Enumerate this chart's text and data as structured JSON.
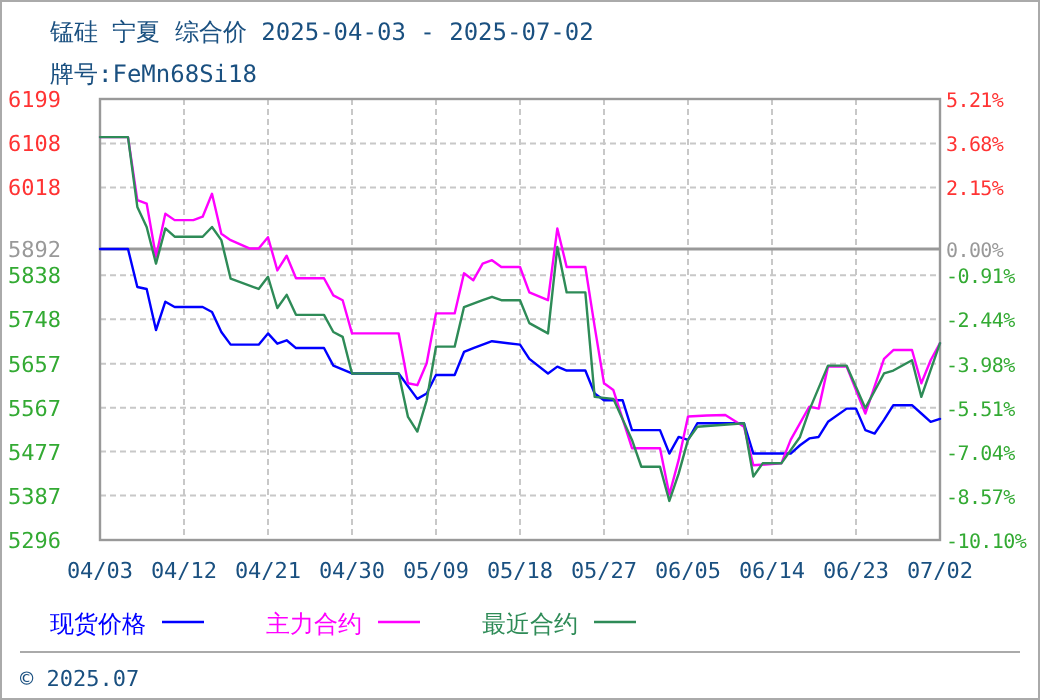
{
  "chart_data": {
    "type": "line",
    "title": "锰硅 宁夏 综合价 2025-04-03 - 2025-07-02",
    "subtitle": "牌号:FeMn68Si18",
    "annotations": [
      "© 2025.07"
    ],
    "xlim": [
      "2025-04-03",
      "2025-07-02"
    ],
    "xticks": [
      {
        "value": "2025-04-03",
        "label": "04/03"
      },
      {
        "value": "2025-04-12",
        "label": "04/12"
      },
      {
        "value": "2025-04-21",
        "label": "04/21"
      },
      {
        "value": "2025-04-30",
        "label": "04/30"
      },
      {
        "value": "2025-05-09",
        "label": "05/09"
      },
      {
        "value": "2025-05-18",
        "label": "05/18"
      },
      {
        "value": "2025-05-27",
        "label": "05/27"
      },
      {
        "value": "2025-06-05",
        "label": "06/05"
      },
      {
        "value": "2025-06-14",
        "label": "06/14"
      },
      {
        "value": "2025-06-23",
        "label": "06/23"
      },
      {
        "value": "2025-07-02",
        "label": "07/02"
      }
    ],
    "ylim": [
      5296,
      6199
    ],
    "yticks": [
      5296,
      5387,
      5477,
      5567,
      5657,
      5748,
      5838,
      5892,
      6018,
      6108,
      6199
    ],
    "y2lim": [
      -10.1,
      5.21
    ],
    "y2ticks": [
      {
        "value": -10.1,
        "label": "-10.10%"
      },
      {
        "value": -8.57,
        "label": "-8.57%"
      },
      {
        "value": -7.04,
        "label": "-7.04%"
      },
      {
        "value": -5.51,
        "label": "-5.51%"
      },
      {
        "value": -3.98,
        "label": "-3.98%"
      },
      {
        "value": -2.44,
        "label": "-2.44%"
      },
      {
        "value": -0.91,
        "label": "-0.91%"
      },
      {
        "value": 0,
        "label": "0.00%"
      },
      {
        "value": 2.15,
        "label": "2.15%"
      },
      {
        "value": 3.68,
        "label": "3.68%"
      },
      {
        "value": 5.21,
        "label": "5.21%"
      }
    ],
    "ref_lines": [
      {
        "axis": "y",
        "value": 5892,
        "color": "#999999"
      }
    ],
    "grid": true,
    "legend": "bottom",
    "series": [
      {
        "name": "现货价格",
        "color": "#0000ff",
        "x": [
          "2025-04-03",
          "2025-04-06",
          "2025-04-07",
          "2025-04-08",
          "2025-04-09",
          "2025-04-10",
          "2025-04-11",
          "2025-04-14",
          "2025-04-15",
          "2025-04-16",
          "2025-04-17",
          "2025-04-20",
          "2025-04-21",
          "2025-04-22",
          "2025-04-23",
          "2025-04-24",
          "2025-04-27",
          "2025-04-28",
          "2025-04-30",
          "2025-05-05",
          "2025-05-07",
          "2025-05-08",
          "2025-05-09",
          "2025-05-11",
          "2025-05-12",
          "2025-05-13",
          "2025-05-15",
          "2025-05-18",
          "2025-05-19",
          "2025-05-21",
          "2025-05-22",
          "2025-05-23",
          "2025-05-25",
          "2025-05-26",
          "2025-05-27",
          "2025-05-29",
          "2025-05-30",
          "2025-06-02",
          "2025-06-03",
          "2025-06-04",
          "2025-06-05",
          "2025-06-06",
          "2025-06-11",
          "2025-06-12",
          "2025-06-16",
          "2025-06-17",
          "2025-06-18",
          "2025-06-19",
          "2025-06-20",
          "2025-06-22",
          "2025-06-23",
          "2025-06-24",
          "2025-06-25",
          "2025-06-26",
          "2025-06-27",
          "2025-06-29",
          "2025-06-30",
          "2025-07-01",
          "2025-07-02"
        ],
        "values": [
          5892,
          5892,
          5814,
          5810,
          5726,
          5784,
          5773,
          5773,
          5763,
          5722,
          5696,
          5696,
          5719,
          5698,
          5705,
          5689,
          5689,
          5653,
          5637,
          5637,
          5585,
          5596,
          5634,
          5634,
          5681,
          5689,
          5703,
          5696,
          5667,
          5637,
          5651,
          5643,
          5643,
          5596,
          5582,
          5582,
          5521,
          5521,
          5473,
          5507,
          5501,
          5535,
          5535,
          5473,
          5473,
          5490,
          5504,
          5507,
          5538,
          5565,
          5565,
          5521,
          5514,
          5542,
          5572,
          5572,
          5555,
          5538,
          5544
        ]
      },
      {
        "name": "主力合约",
        "color": "#ff00ff",
        "x": [
          "2025-04-03",
          "2025-04-06",
          "2025-04-07",
          "2025-04-08",
          "2025-04-09",
          "2025-04-10",
          "2025-04-11",
          "2025-04-13",
          "2025-04-14",
          "2025-04-15",
          "2025-04-16",
          "2025-04-17",
          "2025-04-19",
          "2025-04-20",
          "2025-04-21",
          "2025-04-22",
          "2025-04-23",
          "2025-04-24",
          "2025-04-27",
          "2025-04-28",
          "2025-04-29",
          "2025-04-30",
          "2025-05-05",
          "2025-05-06",
          "2025-05-07",
          "2025-05-08",
          "2025-05-09",
          "2025-05-11",
          "2025-05-12",
          "2025-05-13",
          "2025-05-14",
          "2025-05-15",
          "2025-05-16",
          "2025-05-18",
          "2025-05-19",
          "2025-05-21",
          "2025-05-22",
          "2025-05-23",
          "2025-05-25",
          "2025-05-26",
          "2025-05-27",
          "2025-05-28",
          "2025-05-30",
          "2025-06-02",
          "2025-06-03",
          "2025-06-04",
          "2025-06-05",
          "2025-06-07",
          "2025-06-09",
          "2025-06-11",
          "2025-06-12",
          "2025-06-15",
          "2025-06-16",
          "2025-06-18",
          "2025-06-19",
          "2025-06-20",
          "2025-06-22",
          "2025-06-24",
          "2025-06-26",
          "2025-06-27",
          "2025-06-29",
          "2025-06-30",
          "2025-07-01",
          "2025-07-02"
        ],
        "values": [
          6121,
          6121,
          5992,
          5985,
          5876,
          5964,
          5951,
          5951,
          5958,
          6005,
          5923,
          5910,
          5893,
          5893,
          5916,
          5848,
          5878,
          5832,
          5832,
          5797,
          5787,
          5719,
          5719,
          5617,
          5613,
          5658,
          5760,
          5760,
          5842,
          5828,
          5862,
          5869,
          5855,
          5855,
          5803,
          5787,
          5934,
          5855,
          5855,
          5733,
          5617,
          5603,
          5484,
          5484,
          5389,
          5460,
          5549,
          5551,
          5552,
          5528,
          5449,
          5453,
          5501,
          5569,
          5565,
          5651,
          5651,
          5555,
          5667,
          5685,
          5685,
          5617,
          5664,
          5699
        ]
      },
      {
        "name": "最近合约",
        "color": "#2e8b57",
        "x": [
          "2025-04-03",
          "2025-04-06",
          "2025-04-07",
          "2025-04-08",
          "2025-04-09",
          "2025-04-10",
          "2025-04-11",
          "2025-04-14",
          "2025-04-15",
          "2025-04-16",
          "2025-04-17",
          "2025-04-20",
          "2025-04-21",
          "2025-04-22",
          "2025-04-23",
          "2025-04-24",
          "2025-04-27",
          "2025-04-28",
          "2025-04-29",
          "2025-04-30",
          "2025-05-05",
          "2025-05-06",
          "2025-05-07",
          "2025-05-08",
          "2025-05-09",
          "2025-05-11",
          "2025-05-12",
          "2025-05-14",
          "2025-05-15",
          "2025-05-16",
          "2025-05-18",
          "2025-05-19",
          "2025-05-21",
          "2025-05-22",
          "2025-05-23",
          "2025-05-25",
          "2025-05-26",
          "2025-05-28",
          "2025-05-30",
          "2025-05-31",
          "2025-06-02",
          "2025-06-03",
          "2025-06-04",
          "2025-06-05",
          "2025-06-06",
          "2025-06-11",
          "2025-06-12",
          "2025-06-13",
          "2025-06-15",
          "2025-06-17",
          "2025-06-18",
          "2025-06-20",
          "2025-06-22",
          "2025-06-24",
          "2025-06-26",
          "2025-06-27",
          "2025-06-29",
          "2025-06-30",
          "2025-07-02"
        ],
        "values": [
          6121,
          6121,
          5978,
          5937,
          5862,
          5934,
          5917,
          5917,
          5937,
          5910,
          5831,
          5810,
          5835,
          5771,
          5798,
          5757,
          5757,
          5722,
          5712,
          5637,
          5637,
          5548,
          5518,
          5582,
          5692,
          5692,
          5773,
          5787,
          5794,
          5787,
          5787,
          5740,
          5719,
          5896,
          5803,
          5803,
          5589,
          5585,
          5501,
          5446,
          5446,
          5376,
          5432,
          5501,
          5528,
          5535,
          5426,
          5453,
          5453,
          5507,
          5562,
          5653,
          5653,
          5566,
          5637,
          5643,
          5664,
          5589,
          5699
        ]
      }
    ]
  }
}
